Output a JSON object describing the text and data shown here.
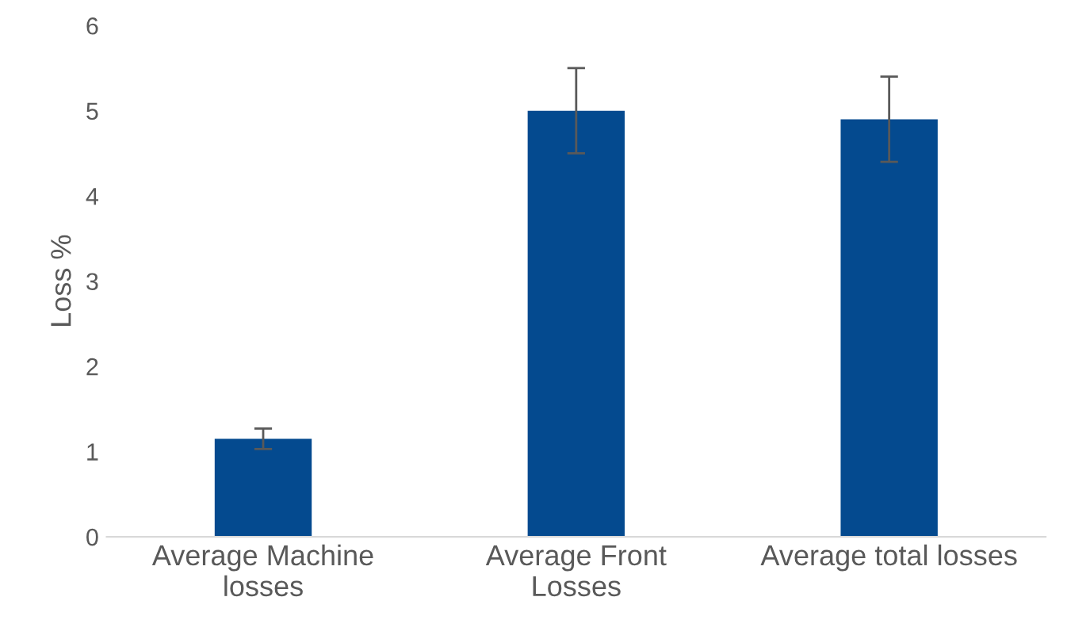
{
  "chart_data": {
    "type": "bar",
    "ylabel": "Loss %",
    "categories": [
      "Average Machine\nlosses",
      "Average Front\nLosses",
      "Average total losses"
    ],
    "values": [
      1.15,
      5.0,
      4.9
    ],
    "errors": [
      0.12,
      0.5,
      0.5
    ],
    "color": "#044a8f",
    "ylim": [
      0,
      6
    ],
    "yticks": [
      0,
      1,
      2,
      3,
      4,
      5,
      6
    ],
    "grid": false,
    "legend": false
  }
}
